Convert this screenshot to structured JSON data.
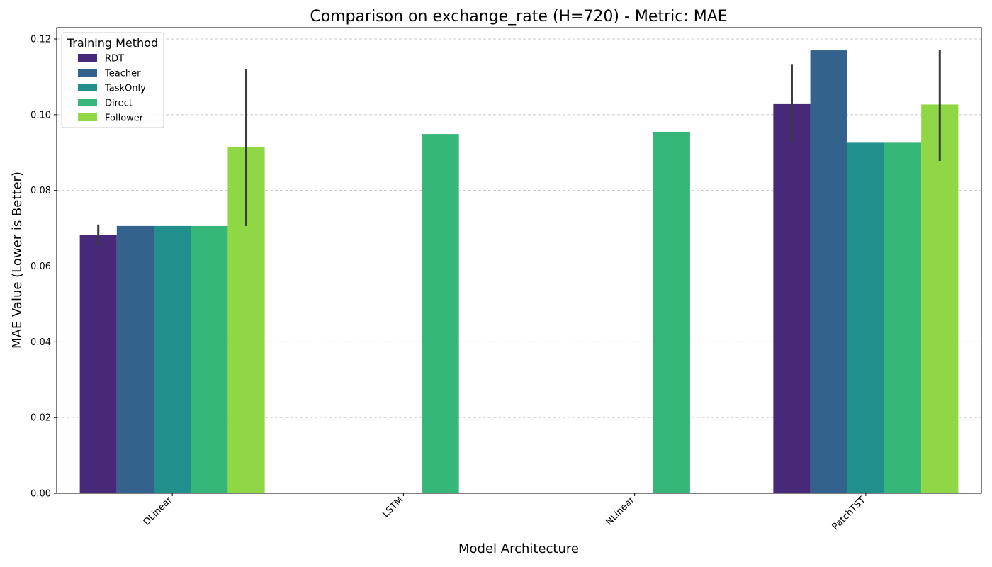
{
  "chart_data": {
    "type": "bar",
    "title": "Comparison on exchange_rate (H=720) - Metric: MAE",
    "xlabel": "Model Architecture",
    "ylabel": "MAE Value (Lower is Better)",
    "categories": [
      "DLinear",
      "LSTM",
      "NLinear",
      "PatchTST"
    ],
    "ylim": [
      0,
      0.123
    ],
    "yticks": [
      0.0,
      0.02,
      0.04,
      0.06,
      0.08,
      0.1,
      0.12
    ],
    "ytick_labels": [
      "0.00",
      "0.02",
      "0.04",
      "0.06",
      "0.08",
      "0.10",
      "0.12"
    ],
    "grid": "y-dashed",
    "legend": {
      "title": "Training Method",
      "placement": "top-left"
    },
    "series": [
      {
        "name": "RDT",
        "color": "#482878",
        "values": [
          0.0683,
          null,
          null,
          0.1028
        ],
        "error_low": [
          0.0654,
          null,
          null,
          0.0925
        ],
        "error_high": [
          0.071,
          null,
          null,
          0.1132
        ]
      },
      {
        "name": "Teacher",
        "color": "#33638d",
        "values": [
          0.0706,
          null,
          null,
          0.117
        ],
        "error_low": [
          null,
          null,
          null,
          null
        ],
        "error_high": [
          null,
          null,
          null,
          null
        ]
      },
      {
        "name": "TaskOnly",
        "color": "#21908d",
        "values": [
          0.0706,
          null,
          null,
          0.0926
        ],
        "error_low": [
          null,
          null,
          null,
          null
        ],
        "error_high": [
          null,
          null,
          null,
          null
        ]
      },
      {
        "name": "Direct",
        "color": "#35b779",
        "values": [
          0.0706,
          0.0949,
          0.0955,
          0.0926
        ],
        "error_low": [
          null,
          null,
          null,
          null
        ],
        "error_high": [
          null,
          null,
          null,
          null
        ]
      },
      {
        "name": "Follower",
        "color": "#8fd744",
        "values": [
          0.0914,
          null,
          null,
          0.1027
        ],
        "error_low": [
          0.0706,
          null,
          null,
          0.0878
        ],
        "error_high": [
          0.112,
          null,
          null,
          0.1171
        ]
      }
    ]
  }
}
